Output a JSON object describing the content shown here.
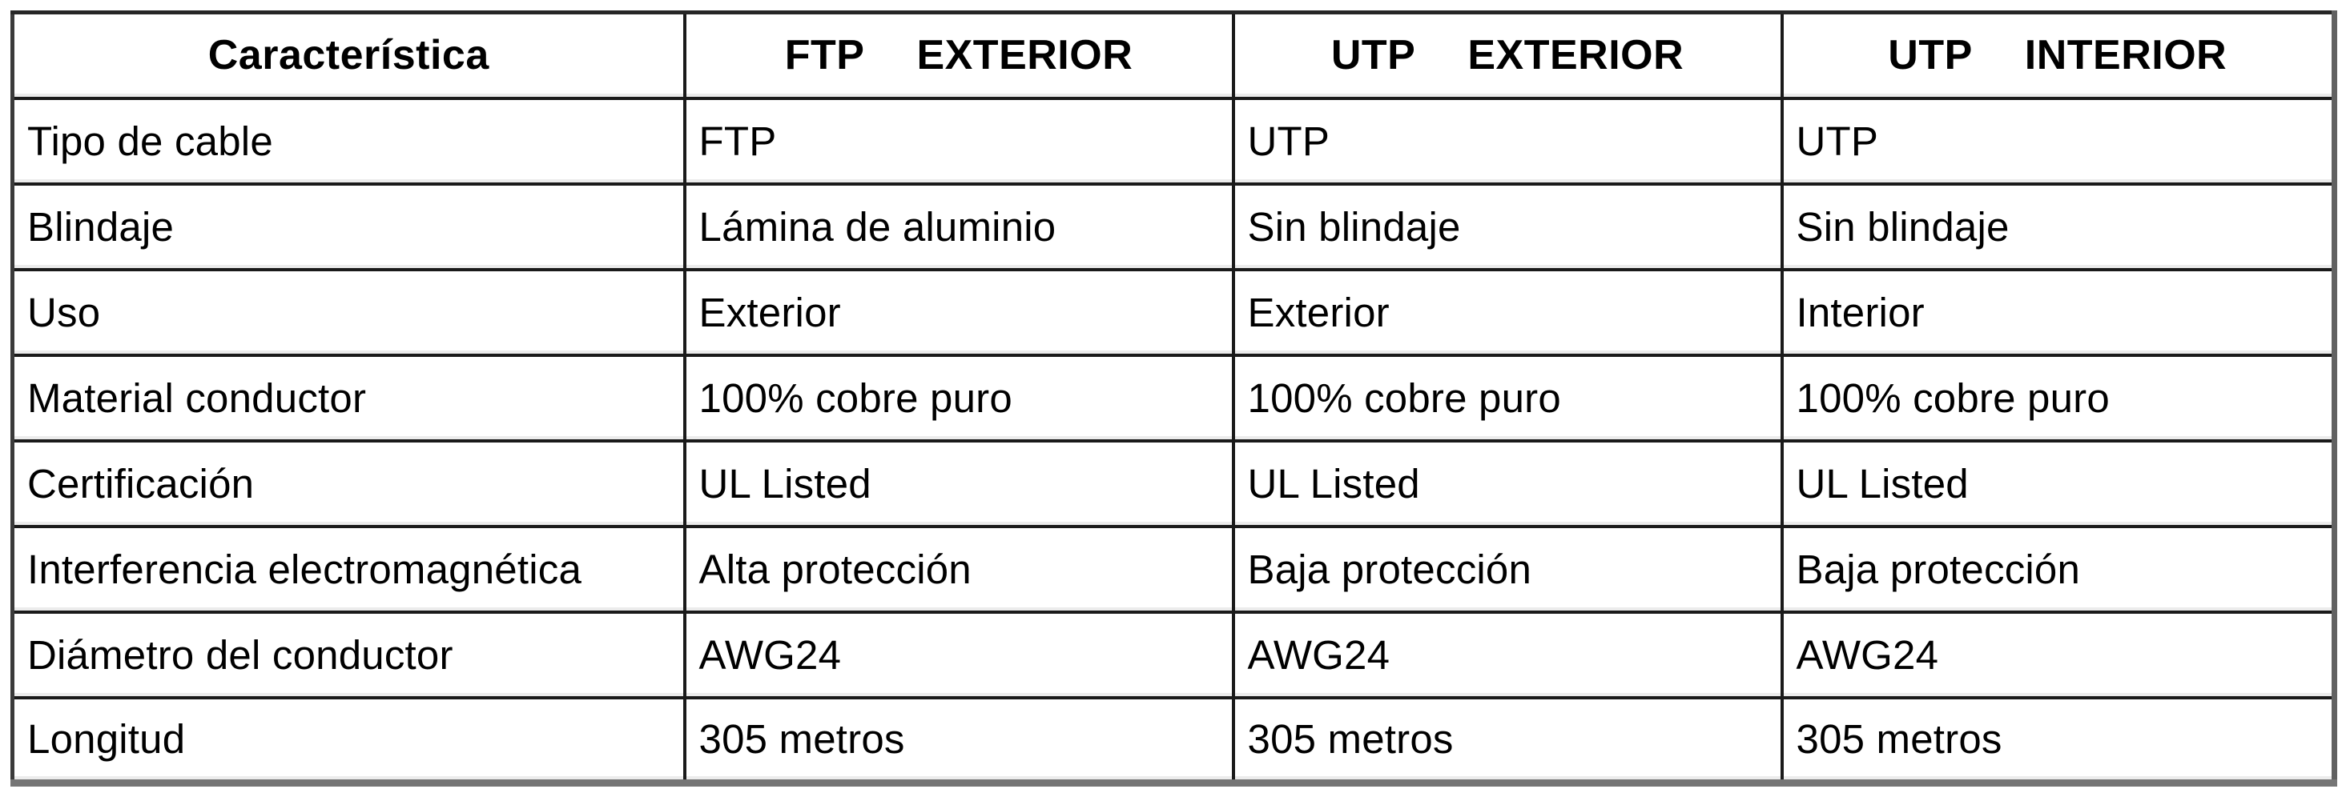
{
  "colors": {
    "text": "#000000",
    "border": "#1a1a1a",
    "background": "#ffffff"
  },
  "table": {
    "header": [
      {
        "words": [
          "Característica"
        ]
      },
      {
        "words": [
          "FTP",
          "EXTERIOR"
        ]
      },
      {
        "words": [
          "UTP",
          "EXTERIOR"
        ]
      },
      {
        "words": [
          "UTP",
          "INTERIOR"
        ]
      }
    ],
    "rows": [
      {
        "label": "Tipo de cable",
        "values": [
          "FTP",
          "UTP",
          "UTP"
        ]
      },
      {
        "label": "Blindaje",
        "values": [
          "Lámina de aluminio",
          "Sin blindaje",
          "Sin blindaje"
        ]
      },
      {
        "label": "Uso",
        "values": [
          "Exterior",
          "Exterior",
          "Interior"
        ]
      },
      {
        "label": "Material conductor",
        "values": [
          "100% cobre puro",
          "100% cobre puro",
          "100% cobre puro"
        ]
      },
      {
        "label": "Certificación",
        "values": [
          "UL Listed",
          "UL Listed",
          "UL Listed"
        ]
      },
      {
        "label": "Interferencia electromagnética",
        "values": [
          "Alta protección",
          "Baja protección",
          "Baja protección"
        ]
      },
      {
        "label": "Diámetro del conductor",
        "values": [
          "AWG24",
          "AWG24",
          "AWG24"
        ]
      },
      {
        "label": "Longitud",
        "values": [
          "305 metros",
          "305 metros",
          "305 metros"
        ]
      }
    ]
  }
}
